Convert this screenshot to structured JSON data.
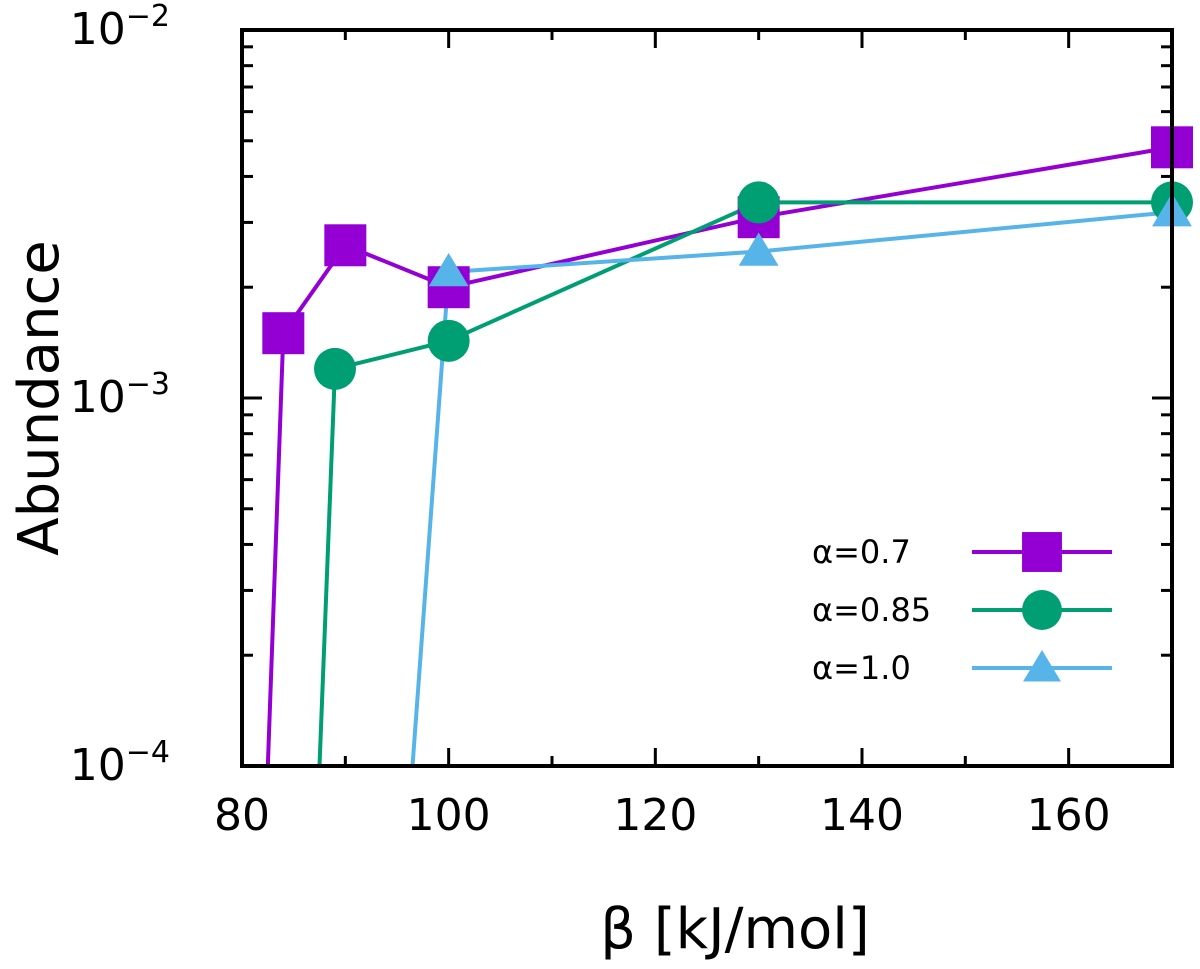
{
  "chart_data": {
    "type": "line",
    "title": "",
    "xlabel": "β [kJ/mol]",
    "ylabel": "Abundance",
    "xlim": [
      80,
      170
    ],
    "ylim": [
      0.0001,
      0.01
    ],
    "yscale": "log",
    "grid": false,
    "legend_position": "bottom-right",
    "x_ticks": [
      {
        "value": 80,
        "label": "80"
      },
      {
        "value": 100,
        "label": "100"
      },
      {
        "value": 120,
        "label": "120"
      },
      {
        "value": 140,
        "label": "140"
      },
      {
        "value": 160,
        "label": "160"
      }
    ],
    "y_ticks": [
      {
        "value": 0.0001,
        "base": "10",
        "exp": "−4"
      },
      {
        "value": 0.001,
        "base": "10",
        "exp": "−3"
      },
      {
        "value": 0.01,
        "base": "10",
        "exp": "−2"
      }
    ],
    "series": [
      {
        "name": "α=0.7",
        "color": "#9400d3",
        "marker": "square",
        "x": [
          82.5,
          84.0,
          90.0,
          100.0,
          130.0,
          170.0
        ],
        "y": [
          0.0001,
          0.0015,
          0.0026,
          0.002,
          0.0031,
          0.0048
        ]
      },
      {
        "name": "α=0.85",
        "color": "#009e73",
        "marker": "circle",
        "x": [
          87.5,
          89.0,
          100.0,
          130.0,
          170.0
        ],
        "y": [
          0.0001,
          0.0012,
          0.00143,
          0.0034,
          0.0034
        ]
      },
      {
        "name": "α=1.0",
        "color": "#56b4e9",
        "marker": "triangle",
        "x": [
          96.5,
          100.0,
          130.0,
          170.0
        ],
        "y": [
          0.0001,
          0.0022,
          0.0025,
          0.0032
        ]
      }
    ]
  }
}
